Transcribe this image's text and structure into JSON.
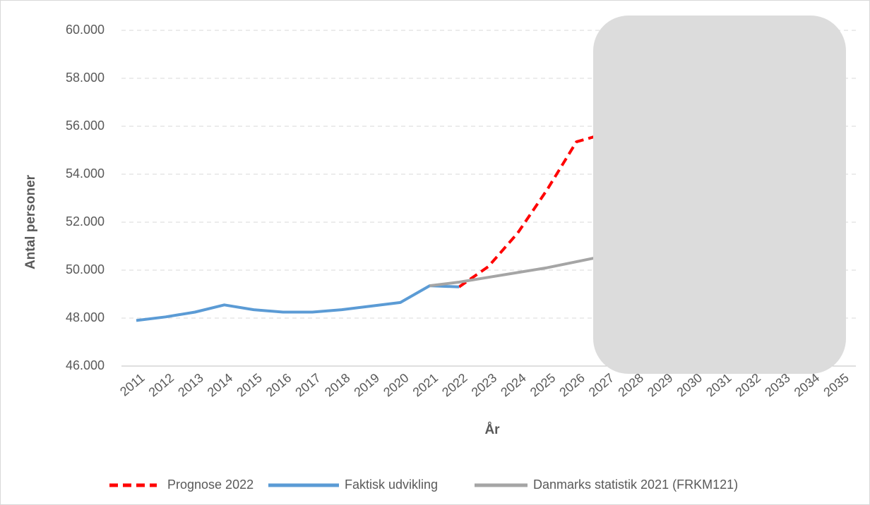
{
  "chart_data": {
    "type": "line",
    "x_label": "År",
    "y_label": "Antal personer",
    "categories": [
      "2011",
      "2012",
      "2013",
      "2014",
      "2015",
      "2016",
      "2017",
      "2018",
      "2019",
      "2020",
      "2021",
      "2022",
      "2023",
      "2024",
      "2025",
      "2026",
      "2027",
      "2028",
      "2029",
      "2030",
      "2031",
      "2032",
      "2033",
      "2034",
      "2035"
    ],
    "series": [
      {
        "name": "Prognose 2022",
        "color": "#ff0000",
        "dashed": true,
        "values": [
          null,
          null,
          null,
          null,
          null,
          null,
          null,
          null,
          null,
          null,
          null,
          49300,
          50150,
          51550,
          53350,
          55350,
          55700,
          null,
          null,
          null,
          null,
          null,
          null,
          null,
          null
        ]
      },
      {
        "name": "Faktisk udvikling",
        "color": "#5b9bd5",
        "dashed": false,
        "values": [
          47900,
          48050,
          48250,
          48550,
          48350,
          48250,
          48250,
          48350,
          48500,
          48650,
          49350,
          49300,
          null,
          null,
          null,
          null,
          null,
          null,
          null,
          null,
          null,
          null,
          null,
          null,
          null
        ]
      },
      {
        "name": "Danmarks statistik 2021 (FRKM121)",
        "color": "#a5a5a5",
        "dashed": false,
        "values": [
          null,
          null,
          null,
          null,
          null,
          null,
          null,
          null,
          null,
          null,
          49350,
          49500,
          49700,
          49900,
          50100,
          50350,
          50600,
          null,
          null,
          null,
          null,
          null,
          null,
          null,
          null
        ]
      }
    ],
    "ylim": [
      46000,
      60000
    ],
    "yticks": [
      {
        "value": 46000,
        "label": "46.000"
      },
      {
        "value": 48000,
        "label": "48.000"
      },
      {
        "value": 50000,
        "label": "50.000"
      },
      {
        "value": 52000,
        "label": "52.000"
      },
      {
        "value": 54000,
        "label": "54.000"
      },
      {
        "value": 56000,
        "label": "56.000"
      },
      {
        "value": 58000,
        "label": "58.000"
      },
      {
        "value": 60000,
        "label": "60.000"
      }
    ],
    "grid": true,
    "legend": "bottom"
  }
}
